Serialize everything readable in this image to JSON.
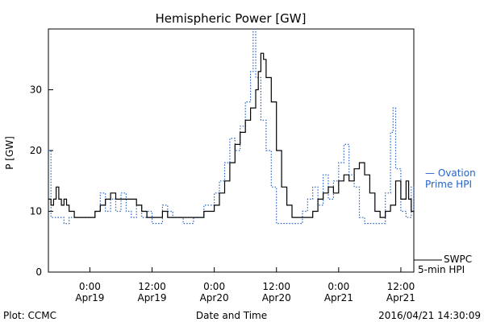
{
  "chart_data": {
    "type": "line",
    "title": "Hemispheric Power [GW]",
    "ylabel": "P [GW]",
    "xlabel": "Date and Time",
    "xlim": [
      "2016-04-18T16:00",
      "2016-04-21T14:30"
    ],
    "ylim": [
      0,
      40
    ],
    "yticks": [
      0,
      10,
      20,
      30
    ],
    "xticks": [
      {
        "time": "2016-04-19T00:00",
        "line1": "0:00",
        "line2": "Apr19"
      },
      {
        "time": "2016-04-19T12:00",
        "line1": "12:00",
        "line2": "Apr19"
      },
      {
        "time": "2016-04-20T00:00",
        "line1": "0:00",
        "line2": "Apr20"
      },
      {
        "time": "2016-04-20T12:00",
        "line1": "12:00",
        "line2": "Apr20"
      },
      {
        "time": "2016-04-21T00:00",
        "line1": "0:00",
        "line2": "Apr21"
      },
      {
        "time": "2016-04-21T12:00",
        "line1": "12:00",
        "line2": "Apr21"
      }
    ],
    "series": [
      {
        "name": "SWPC 5-min HPI",
        "color": "#000000",
        "style": "solid",
        "points": [
          [
            "2016-04-18T16:00",
            12
          ],
          [
            "2016-04-18T16:30",
            11
          ],
          [
            "2016-04-18T17:00",
            12
          ],
          [
            "2016-04-18T17:30",
            14
          ],
          [
            "2016-04-18T18:00",
            12
          ],
          [
            "2016-04-18T18:30",
            11
          ],
          [
            "2016-04-18T19:00",
            12
          ],
          [
            "2016-04-18T19:30",
            11
          ],
          [
            "2016-04-18T20:00",
            10
          ],
          [
            "2016-04-18T21:00",
            9
          ],
          [
            "2016-04-19T00:00",
            9
          ],
          [
            "2016-04-19T01:00",
            10
          ],
          [
            "2016-04-19T02:00",
            11
          ],
          [
            "2016-04-19T03:00",
            12
          ],
          [
            "2016-04-19T04:00",
            13
          ],
          [
            "2016-04-19T05:00",
            12
          ],
          [
            "2016-04-19T08:00",
            12
          ],
          [
            "2016-04-19T09:00",
            11
          ],
          [
            "2016-04-19T10:00",
            10
          ],
          [
            "2016-04-19T11:00",
            9
          ],
          [
            "2016-04-19T14:00",
            10
          ],
          [
            "2016-04-19T15:00",
            9
          ],
          [
            "2016-04-19T19:00",
            9
          ],
          [
            "2016-04-19T22:00",
            10
          ],
          [
            "2016-04-20T00:00",
            11
          ],
          [
            "2016-04-20T01:00",
            13
          ],
          [
            "2016-04-20T02:00",
            15
          ],
          [
            "2016-04-20T03:00",
            18
          ],
          [
            "2016-04-20T04:00",
            21
          ],
          [
            "2016-04-20T05:00",
            23
          ],
          [
            "2016-04-20T06:00",
            25
          ],
          [
            "2016-04-20T07:00",
            27
          ],
          [
            "2016-04-20T08:00",
            30
          ],
          [
            "2016-04-20T08:30",
            33
          ],
          [
            "2016-04-20T09:00",
            36
          ],
          [
            "2016-04-20T09:30",
            35
          ],
          [
            "2016-04-20T10:00",
            32
          ],
          [
            "2016-04-20T11:00",
            28
          ],
          [
            "2016-04-20T12:00",
            20
          ],
          [
            "2016-04-20T13:00",
            14
          ],
          [
            "2016-04-20T14:00",
            11
          ],
          [
            "2016-04-20T15:00",
            9
          ],
          [
            "2016-04-20T18:00",
            9
          ],
          [
            "2016-04-20T19:00",
            10
          ],
          [
            "2016-04-20T20:00",
            12
          ],
          [
            "2016-04-20T21:00",
            13
          ],
          [
            "2016-04-20T22:00",
            14
          ],
          [
            "2016-04-20T23:00",
            13
          ],
          [
            "2016-04-21T00:00",
            15
          ],
          [
            "2016-04-21T01:00",
            16
          ],
          [
            "2016-04-21T02:00",
            15
          ],
          [
            "2016-04-21T03:00",
            17
          ],
          [
            "2016-04-21T04:00",
            18
          ],
          [
            "2016-04-21T05:00",
            16
          ],
          [
            "2016-04-21T06:00",
            13
          ],
          [
            "2016-04-21T07:00",
            10
          ],
          [
            "2016-04-21T08:00",
            9
          ],
          [
            "2016-04-21T09:00",
            10
          ],
          [
            "2016-04-21T10:00",
            11
          ],
          [
            "2016-04-21T11:00",
            15
          ],
          [
            "2016-04-21T12:00",
            12
          ],
          [
            "2016-04-21T13:00",
            15
          ],
          [
            "2016-04-21T13:30",
            12
          ],
          [
            "2016-04-21T14:00",
            10
          ],
          [
            "2016-04-21T14:30",
            10
          ]
        ]
      },
      {
        "name": "Ovation Prime HPI",
        "color": "#2563c9",
        "style": "dotted",
        "points": [
          [
            "2016-04-18T16:00",
            20
          ],
          [
            "2016-04-18T16:30",
            9
          ],
          [
            "2016-04-18T18:00",
            9
          ],
          [
            "2016-04-18T19:00",
            8
          ],
          [
            "2016-04-18T20:00",
            9
          ],
          [
            "2016-04-19T00:00",
            9
          ],
          [
            "2016-04-19T01:00",
            10
          ],
          [
            "2016-04-19T02:00",
            13
          ],
          [
            "2016-04-19T03:00",
            10
          ],
          [
            "2016-04-19T04:00",
            12
          ],
          [
            "2016-04-19T05:00",
            10
          ],
          [
            "2016-04-19T06:00",
            13
          ],
          [
            "2016-04-19T07:00",
            10
          ],
          [
            "2016-04-19T08:00",
            9
          ],
          [
            "2016-04-19T09:00",
            11
          ],
          [
            "2016-04-19T10:00",
            9
          ],
          [
            "2016-04-19T11:00",
            10
          ],
          [
            "2016-04-19T12:00",
            8
          ],
          [
            "2016-04-19T14:00",
            11
          ],
          [
            "2016-04-19T15:00",
            10
          ],
          [
            "2016-04-19T16:00",
            9
          ],
          [
            "2016-04-19T18:00",
            8
          ],
          [
            "2016-04-19T20:00",
            9
          ],
          [
            "2016-04-19T22:00",
            11
          ],
          [
            "2016-04-20T00:00",
            13
          ],
          [
            "2016-04-20T01:00",
            15
          ],
          [
            "2016-04-20T02:00",
            18
          ],
          [
            "2016-04-20T03:00",
            22
          ],
          [
            "2016-04-20T04:00",
            20
          ],
          [
            "2016-04-20T05:00",
            24
          ],
          [
            "2016-04-20T06:00",
            28
          ],
          [
            "2016-04-20T07:00",
            33
          ],
          [
            "2016-04-20T07:30",
            40
          ],
          [
            "2016-04-20T08:00",
            32
          ],
          [
            "2016-04-20T09:00",
            25
          ],
          [
            "2016-04-20T10:00",
            20
          ],
          [
            "2016-04-20T11:00",
            14
          ],
          [
            "2016-04-20T12:00",
            8
          ],
          [
            "2016-04-20T16:00",
            8
          ],
          [
            "2016-04-20T17:00",
            10
          ],
          [
            "2016-04-20T18:00",
            12
          ],
          [
            "2016-04-20T19:00",
            14
          ],
          [
            "2016-04-20T20:00",
            11
          ],
          [
            "2016-04-20T21:00",
            16
          ],
          [
            "2016-04-20T22:00",
            12
          ],
          [
            "2016-04-20T23:00",
            15
          ],
          [
            "2016-04-21T00:00",
            18
          ],
          [
            "2016-04-21T01:00",
            21
          ],
          [
            "2016-04-21T02:00",
            16
          ],
          [
            "2016-04-21T03:00",
            14
          ],
          [
            "2016-04-21T04:00",
            9
          ],
          [
            "2016-04-21T05:00",
            8
          ],
          [
            "2016-04-21T08:00",
            8
          ],
          [
            "2016-04-21T09:00",
            13
          ],
          [
            "2016-04-21T10:00",
            23
          ],
          [
            "2016-04-21T10:30",
            27
          ],
          [
            "2016-04-21T11:00",
            17
          ],
          [
            "2016-04-21T12:00",
            10
          ],
          [
            "2016-04-21T13:00",
            9
          ],
          [
            "2016-04-21T14:00",
            14
          ],
          [
            "2016-04-21T14:30",
            10
          ]
        ]
      }
    ],
    "legend": {
      "ovation": [
        "— Ovation",
        "Prime HPI"
      ],
      "swpc": [
        "SWPC",
        "5-min HPI"
      ]
    }
  },
  "footer": {
    "left": "Plot: CCMC",
    "center": "Date and Time",
    "right": "2016/04/21 14:30:09"
  }
}
